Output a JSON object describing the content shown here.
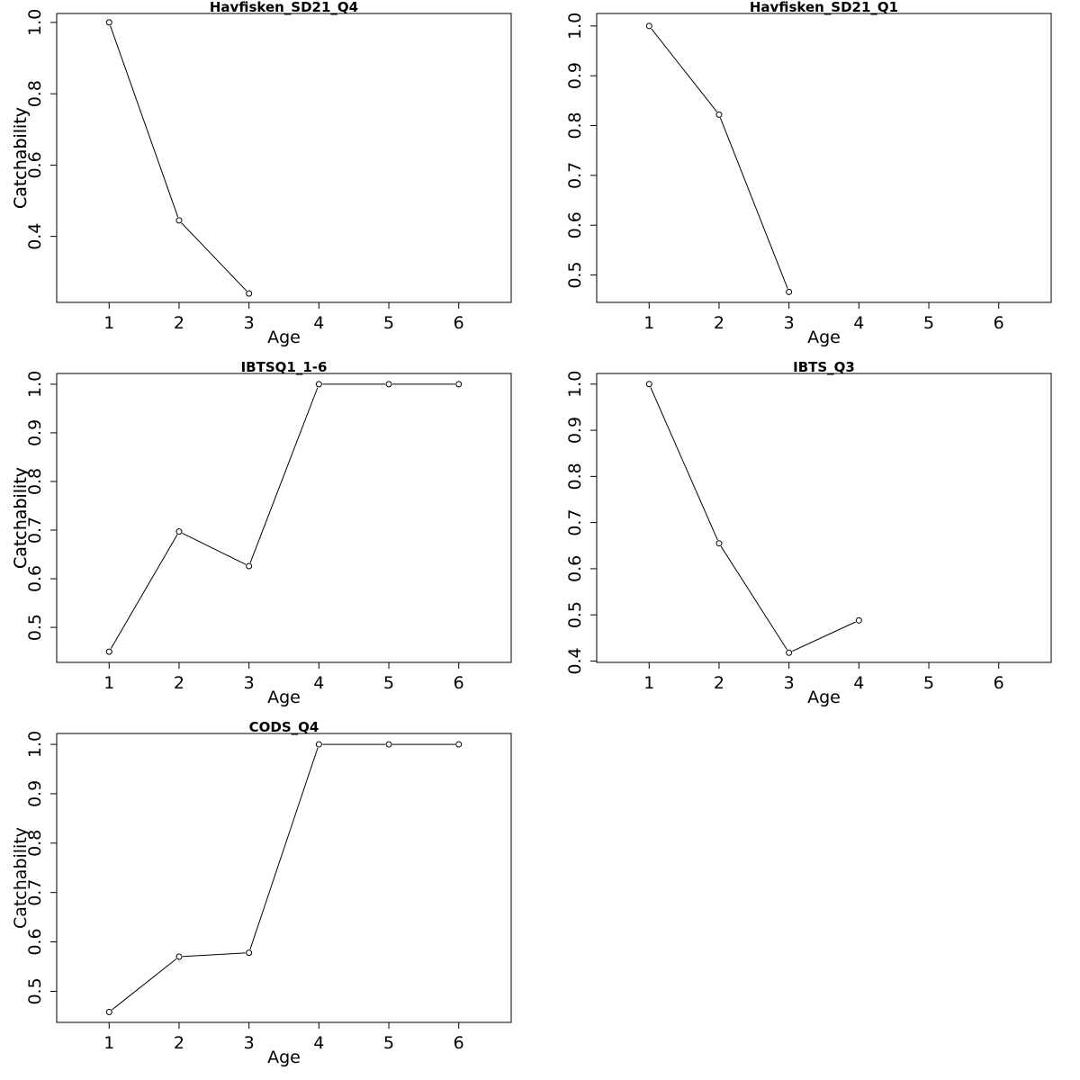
{
  "chart_data": [
    {
      "type": "line",
      "title": "Havfisken_SD21_Q4",
      "xlabel": "Age",
      "ylabel": "Catchability",
      "xlim": [
        0.25,
        6.75
      ],
      "ylim": [
        0.215,
        1.025
      ],
      "x_ticks": [
        1,
        2,
        3,
        4,
        5,
        6
      ],
      "y_ticks": [
        0.4,
        0.6,
        0.8,
        1.0
      ],
      "y_tick_labels": [
        "0.4",
        "0.6",
        "0.8",
        "1.0"
      ],
      "x": [
        1,
        2,
        3
      ],
      "y": [
        1.0,
        0.445,
        0.24
      ],
      "grid": false
    },
    {
      "type": "line",
      "title": "Havfisken_SD21_Q1",
      "xlabel": "Age",
      "ylabel": "Catchability",
      "xlim": [
        0.25,
        6.75
      ],
      "ylim": [
        0.445,
        1.025
      ],
      "x_ticks": [
        1,
        2,
        3,
        4,
        5,
        6
      ],
      "y_ticks": [
        0.5,
        0.6,
        0.7,
        0.8,
        0.9,
        1.0
      ],
      "y_tick_labels": [
        "0.5",
        "0.6",
        "0.7",
        "0.8",
        "0.9",
        "1.0"
      ],
      "x": [
        1,
        2,
        3
      ],
      "y": [
        1.0,
        0.822,
        0.466
      ],
      "grid": false
    },
    {
      "type": "line",
      "title": "IBTSQ1_1-6",
      "xlabel": "Age",
      "ylabel": "Catchability",
      "xlim": [
        0.25,
        6.75
      ],
      "ylim": [
        0.428,
        1.022
      ],
      "x_ticks": [
        1,
        2,
        3,
        4,
        5,
        6
      ],
      "y_ticks": [
        0.5,
        0.6,
        0.7,
        0.8,
        0.9,
        1.0
      ],
      "y_tick_labels": [
        "0.5",
        "0.6",
        "0.7",
        "0.8",
        "0.9",
        "1.0"
      ],
      "x": [
        1,
        2,
        3,
        4,
        5,
        6
      ],
      "y": [
        0.45,
        0.697,
        0.626,
        1.0,
        1.0,
        1.0
      ],
      "grid": false
    },
    {
      "type": "line",
      "title": "IBTS_Q3",
      "xlabel": "Age",
      "ylabel": "Catchability",
      "xlim": [
        0.25,
        6.75
      ],
      "ylim": [
        0.397,
        1.023
      ],
      "x_ticks": [
        1,
        2,
        3,
        4,
        5,
        6
      ],
      "y_ticks": [
        0.4,
        0.5,
        0.6,
        0.7,
        0.8,
        0.9,
        1.0
      ],
      "y_tick_labels": [
        "0.4",
        "0.5",
        "0.6",
        "0.7",
        "0.8",
        "0.9",
        "1.0"
      ],
      "x": [
        1,
        2,
        3,
        4
      ],
      "y": [
        1.0,
        0.655,
        0.418,
        0.488
      ],
      "grid": false
    },
    {
      "type": "line",
      "title": "CODS_Q4",
      "xlabel": "Age",
      "ylabel": "Catchability",
      "xlim": [
        0.25,
        6.75
      ],
      "ylim": [
        0.437,
        1.022
      ],
      "x_ticks": [
        1,
        2,
        3,
        4,
        5,
        6
      ],
      "y_ticks": [
        0.5,
        0.6,
        0.7,
        0.8,
        0.9,
        1.0
      ],
      "y_tick_labels": [
        "0.5",
        "0.6",
        "0.7",
        "0.8",
        "0.9",
        "1.0"
      ],
      "x": [
        1,
        2,
        3,
        4,
        5,
        6
      ],
      "y": [
        0.458,
        0.57,
        0.578,
        1.0,
        1.0,
        1.0
      ],
      "grid": false
    }
  ]
}
